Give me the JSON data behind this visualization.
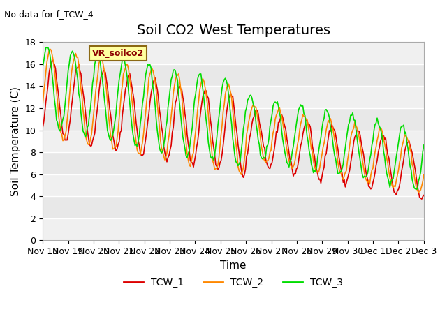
{
  "title": "Soil CO2 West Temperatures",
  "no_data_text": "No data for f_TCW_4",
  "vr_label": "VR_soilco2",
  "ylabel": "Soil Temperature (C)",
  "xlabel": "Time",
  "ylim": [
    0,
    18
  ],
  "yticks": [
    0,
    2,
    4,
    6,
    8,
    10,
    12,
    14,
    16,
    18
  ],
  "legend_labels": [
    "TCW_1",
    "TCW_2",
    "TCW_3"
  ],
  "line_colors": [
    "#dd0000",
    "#ff8800",
    "#00dd00"
  ],
  "background_color": "#ffffff",
  "plot_bg_color": "#e8e8e8",
  "grid_color": "#ffffff",
  "xtick_labels": [
    "Nov 18",
    "Nov 19",
    "Nov 20",
    "Nov 21",
    "Nov 22",
    "Nov 23",
    "Nov 24",
    "Nov 25",
    "Nov 26",
    "Nov 27",
    "Nov 28",
    "Nov 29",
    "Nov 30",
    "Dec 1",
    "Dec 2",
    "Dec 3"
  ],
  "title_fontsize": 14,
  "axis_label_fontsize": 11,
  "tick_fontsize": 9
}
